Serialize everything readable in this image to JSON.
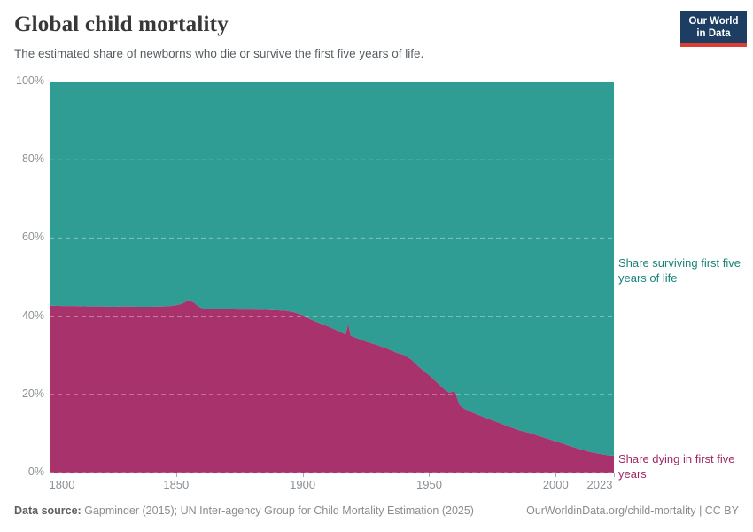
{
  "header": {
    "title": "Global child mortality",
    "subtitle": "The estimated share of newborns who die or survive the first five years of life.",
    "logo": {
      "line1": "Our World",
      "line2": "in Data"
    }
  },
  "colors": {
    "surviving_area": "#2f9d94",
    "dying_area": "#a8326b",
    "surviving_label_text": "#17837a",
    "dying_label_text": "#a22767",
    "axis_text": "#8a9196",
    "tick_mark": "#a6adb3",
    "axis_line": "#dadee1",
    "gridline": "rgba(255,255,255,0.4)",
    "logo_bg": "#1d3d63",
    "logo_red": "#dc3e34"
  },
  "chart_data": {
    "type": "area",
    "stacked": true,
    "unit": "%",
    "title": "Global child mortality",
    "xlim": [
      1800,
      2023
    ],
    "ylim": [
      0,
      100
    ],
    "x_tick_labels": [
      "1800",
      "1850",
      "1900",
      "1950",
      "2000",
      "2023"
    ],
    "x_tick_values": [
      1800,
      1850,
      1900,
      1950,
      2000,
      2023
    ],
    "y_tick_labels": [
      "0%",
      "20%",
      "40%",
      "60%",
      "80%",
      "100%"
    ],
    "y_tick_values": [
      0,
      20,
      40,
      60,
      80,
      100
    ],
    "grid": "dashed horizontal",
    "legend_position": "right-of-plot inline labels",
    "x": [
      1800,
      1805,
      1810,
      1815,
      1820,
      1825,
      1830,
      1835,
      1840,
      1845,
      1848,
      1851,
      1853,
      1855,
      1857,
      1859,
      1861,
      1865,
      1870,
      1875,
      1880,
      1885,
      1890,
      1893,
      1896,
      1900,
      1903,
      1906,
      1910,
      1913,
      1916,
      1917,
      1918,
      1919,
      1921,
      1925,
      1929,
      1933,
      1937,
      1940,
      1943,
      1946,
      1950,
      1953,
      1956,
      1958,
      1960,
      1962,
      1964,
      1967,
      1970,
      1974,
      1978,
      1982,
      1986,
      1990,
      1994,
      1998,
      2002,
      2006,
      2010,
      2014,
      2018,
      2021,
      2023
    ],
    "series": [
      {
        "name": "Share dying in first five years",
        "color": "#a8326b",
        "values": [
          42.7,
          42.6,
          42.6,
          42.5,
          42.5,
          42.4,
          42.5,
          42.4,
          42.4,
          42.5,
          42.6,
          42.9,
          43.4,
          44.1,
          43.5,
          42.4,
          41.9,
          41.8,
          41.8,
          41.7,
          41.7,
          41.6,
          41.5,
          41.4,
          41.1,
          40.3,
          39.2,
          38.4,
          37.4,
          36.5,
          35.6,
          35.3,
          38.0,
          35.0,
          34.5,
          33.5,
          32.7,
          31.8,
          30.7,
          30.1,
          28.9,
          27.0,
          24.9,
          23.1,
          21.3,
          20.4,
          20.9,
          17.3,
          16.3,
          15.4,
          14.6,
          13.6,
          12.6,
          11.6,
          10.7,
          10.1,
          9.2,
          8.4,
          7.6,
          6.7,
          5.9,
          5.2,
          4.7,
          4.4,
          4.3
        ]
      },
      {
        "name": "Share surviving first five years of life",
        "color": "#2f9d94",
        "stacks_to": 100,
        "values_rule": "complement: 100 minus dying share at each year"
      }
    ]
  },
  "annotations": {
    "surviving_label": "Share surviving first five years of life",
    "dying_label": "Share dying in first five years"
  },
  "footer": {
    "datasource_label": "Data source:",
    "datasource_text": " Gapminder (2015); UN Inter-agency Group for Child Mortality Estimation (2025)",
    "right_text": "OurWorldinData.org/child-mortality | CC BY"
  }
}
